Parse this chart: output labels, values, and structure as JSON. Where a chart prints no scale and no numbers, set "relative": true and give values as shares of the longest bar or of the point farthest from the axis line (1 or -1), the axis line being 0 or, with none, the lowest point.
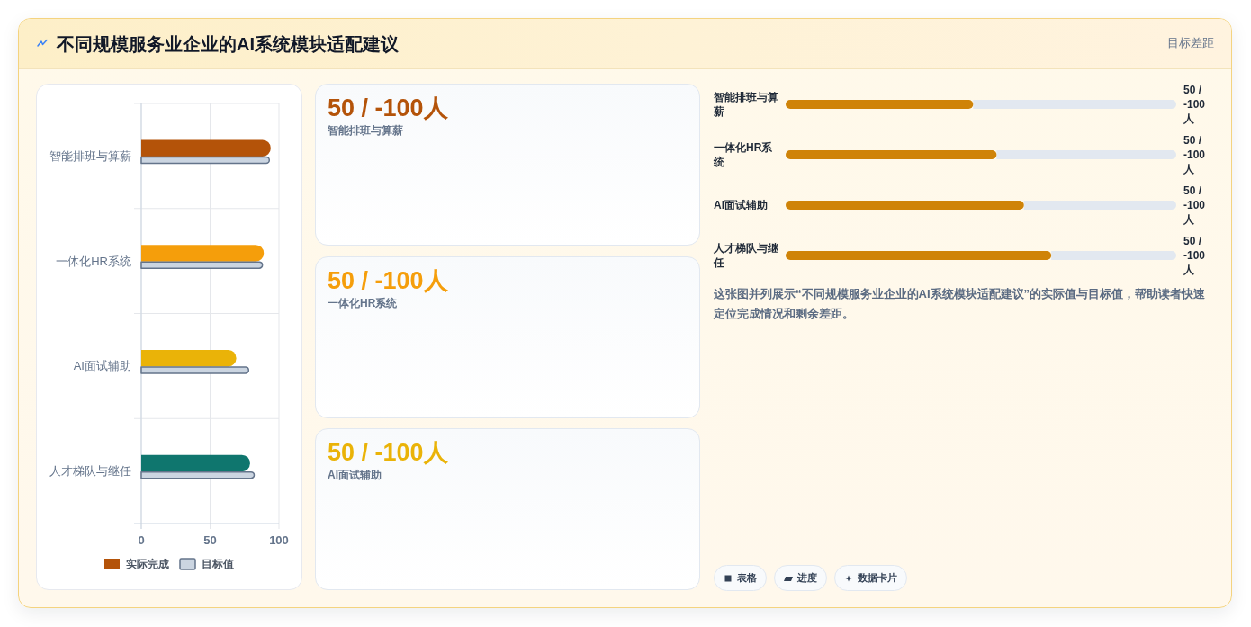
{
  "chart_data": [
    {
      "type": "bar",
      "title": "不同规模服务业企业的AI系统模块适配建议",
      "orientation": "horizontal",
      "categories": [
        "智能排班与算薪",
        "一体化HR系统",
        "AI面试辅助",
        "人才梯队与继任"
      ],
      "series": [
        {
          "name": "实际完成",
          "colors": [
            "#b45309",
            "#f59e0b",
            "#eab308",
            "#0f766e"
          ],
          "values": [
            94,
            89,
            69,
            79
          ]
        },
        {
          "name": "目标值",
          "color": "#cbd5e1",
          "values": [
            93,
            88,
            78,
            82
          ]
        }
      ],
      "xlim": [
        0,
        100
      ],
      "xticks": [
        0,
        50,
        100
      ],
      "grid": true,
      "legend": "bottom"
    },
    {
      "type": "other",
      "categories": [
        "智能排班与算薪",
        "一体化HR系统",
        "AI面试辅助"
      ],
      "value_labels": [
        "50 / -100人",
        "50 / -100人",
        "50 / -100人"
      ]
    },
    {
      "type": "bar",
      "title": "目标差距",
      "orientation": "horizontal",
      "stacked": true,
      "relative": true,
      "categories": [
        "智能排班与算薪",
        "一体化HR系统",
        "AI面试辅助",
        "人才梯队与继任"
      ],
      "series": [
        {
          "color": "#cf8308",
          "values": [
            0.48,
            0.54,
            0.61,
            0.68
          ]
        },
        {
          "color": "#e2e8f0",
          "values": [
            0.52,
            0.46,
            0.39,
            0.32
          ]
        }
      ],
      "annotations": [
        "50 / -100人",
        "50 / -100人",
        "50 / -100人",
        "50 / -100人",
        "这张图并列展示“不同规模服务业企业的AI系统模块适配建议”的实际值与目标值，帮助读者快速定位完成情况和剩余差距。",
        "表格",
        "进度",
        "数据卡片"
      ]
    }
  ]
}
